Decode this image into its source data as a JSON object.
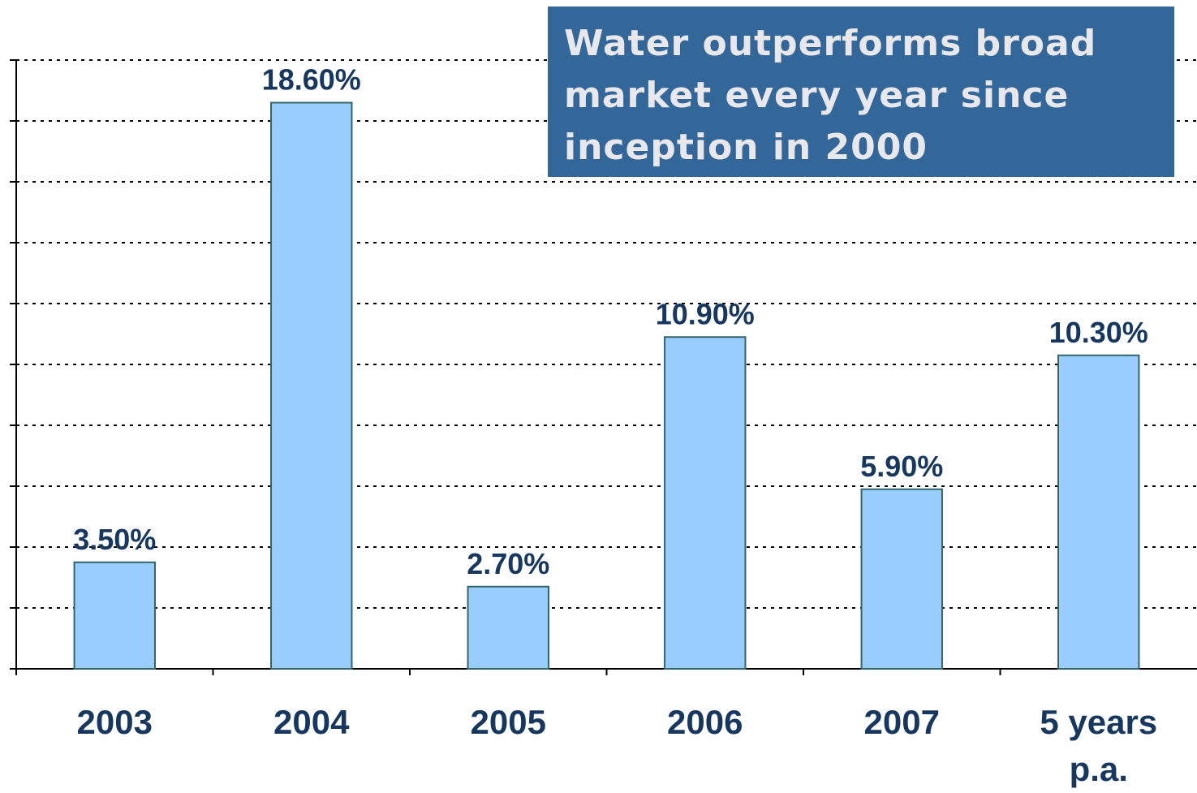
{
  "chart_data": {
    "type": "bar",
    "title": "Water outperforms broad market every year since inception in 2000",
    "categories": [
      "2003",
      "2004",
      "2005",
      "2006",
      "2007",
      "5 years p.a."
    ],
    "values": [
      3.5,
      18.6,
      2.7,
      10.9,
      5.9,
      10.3
    ],
    "value_labels": [
      "3.50%",
      "18.60%",
      "2.70%",
      "10.90%",
      "5.90%",
      "10.30%"
    ],
    "color": "#99ccff",
    "ylim": [
      0,
      20
    ],
    "yticks": [
      0,
      2,
      4,
      6,
      8,
      10,
      12,
      14,
      16,
      18,
      20
    ],
    "grid": true
  }
}
